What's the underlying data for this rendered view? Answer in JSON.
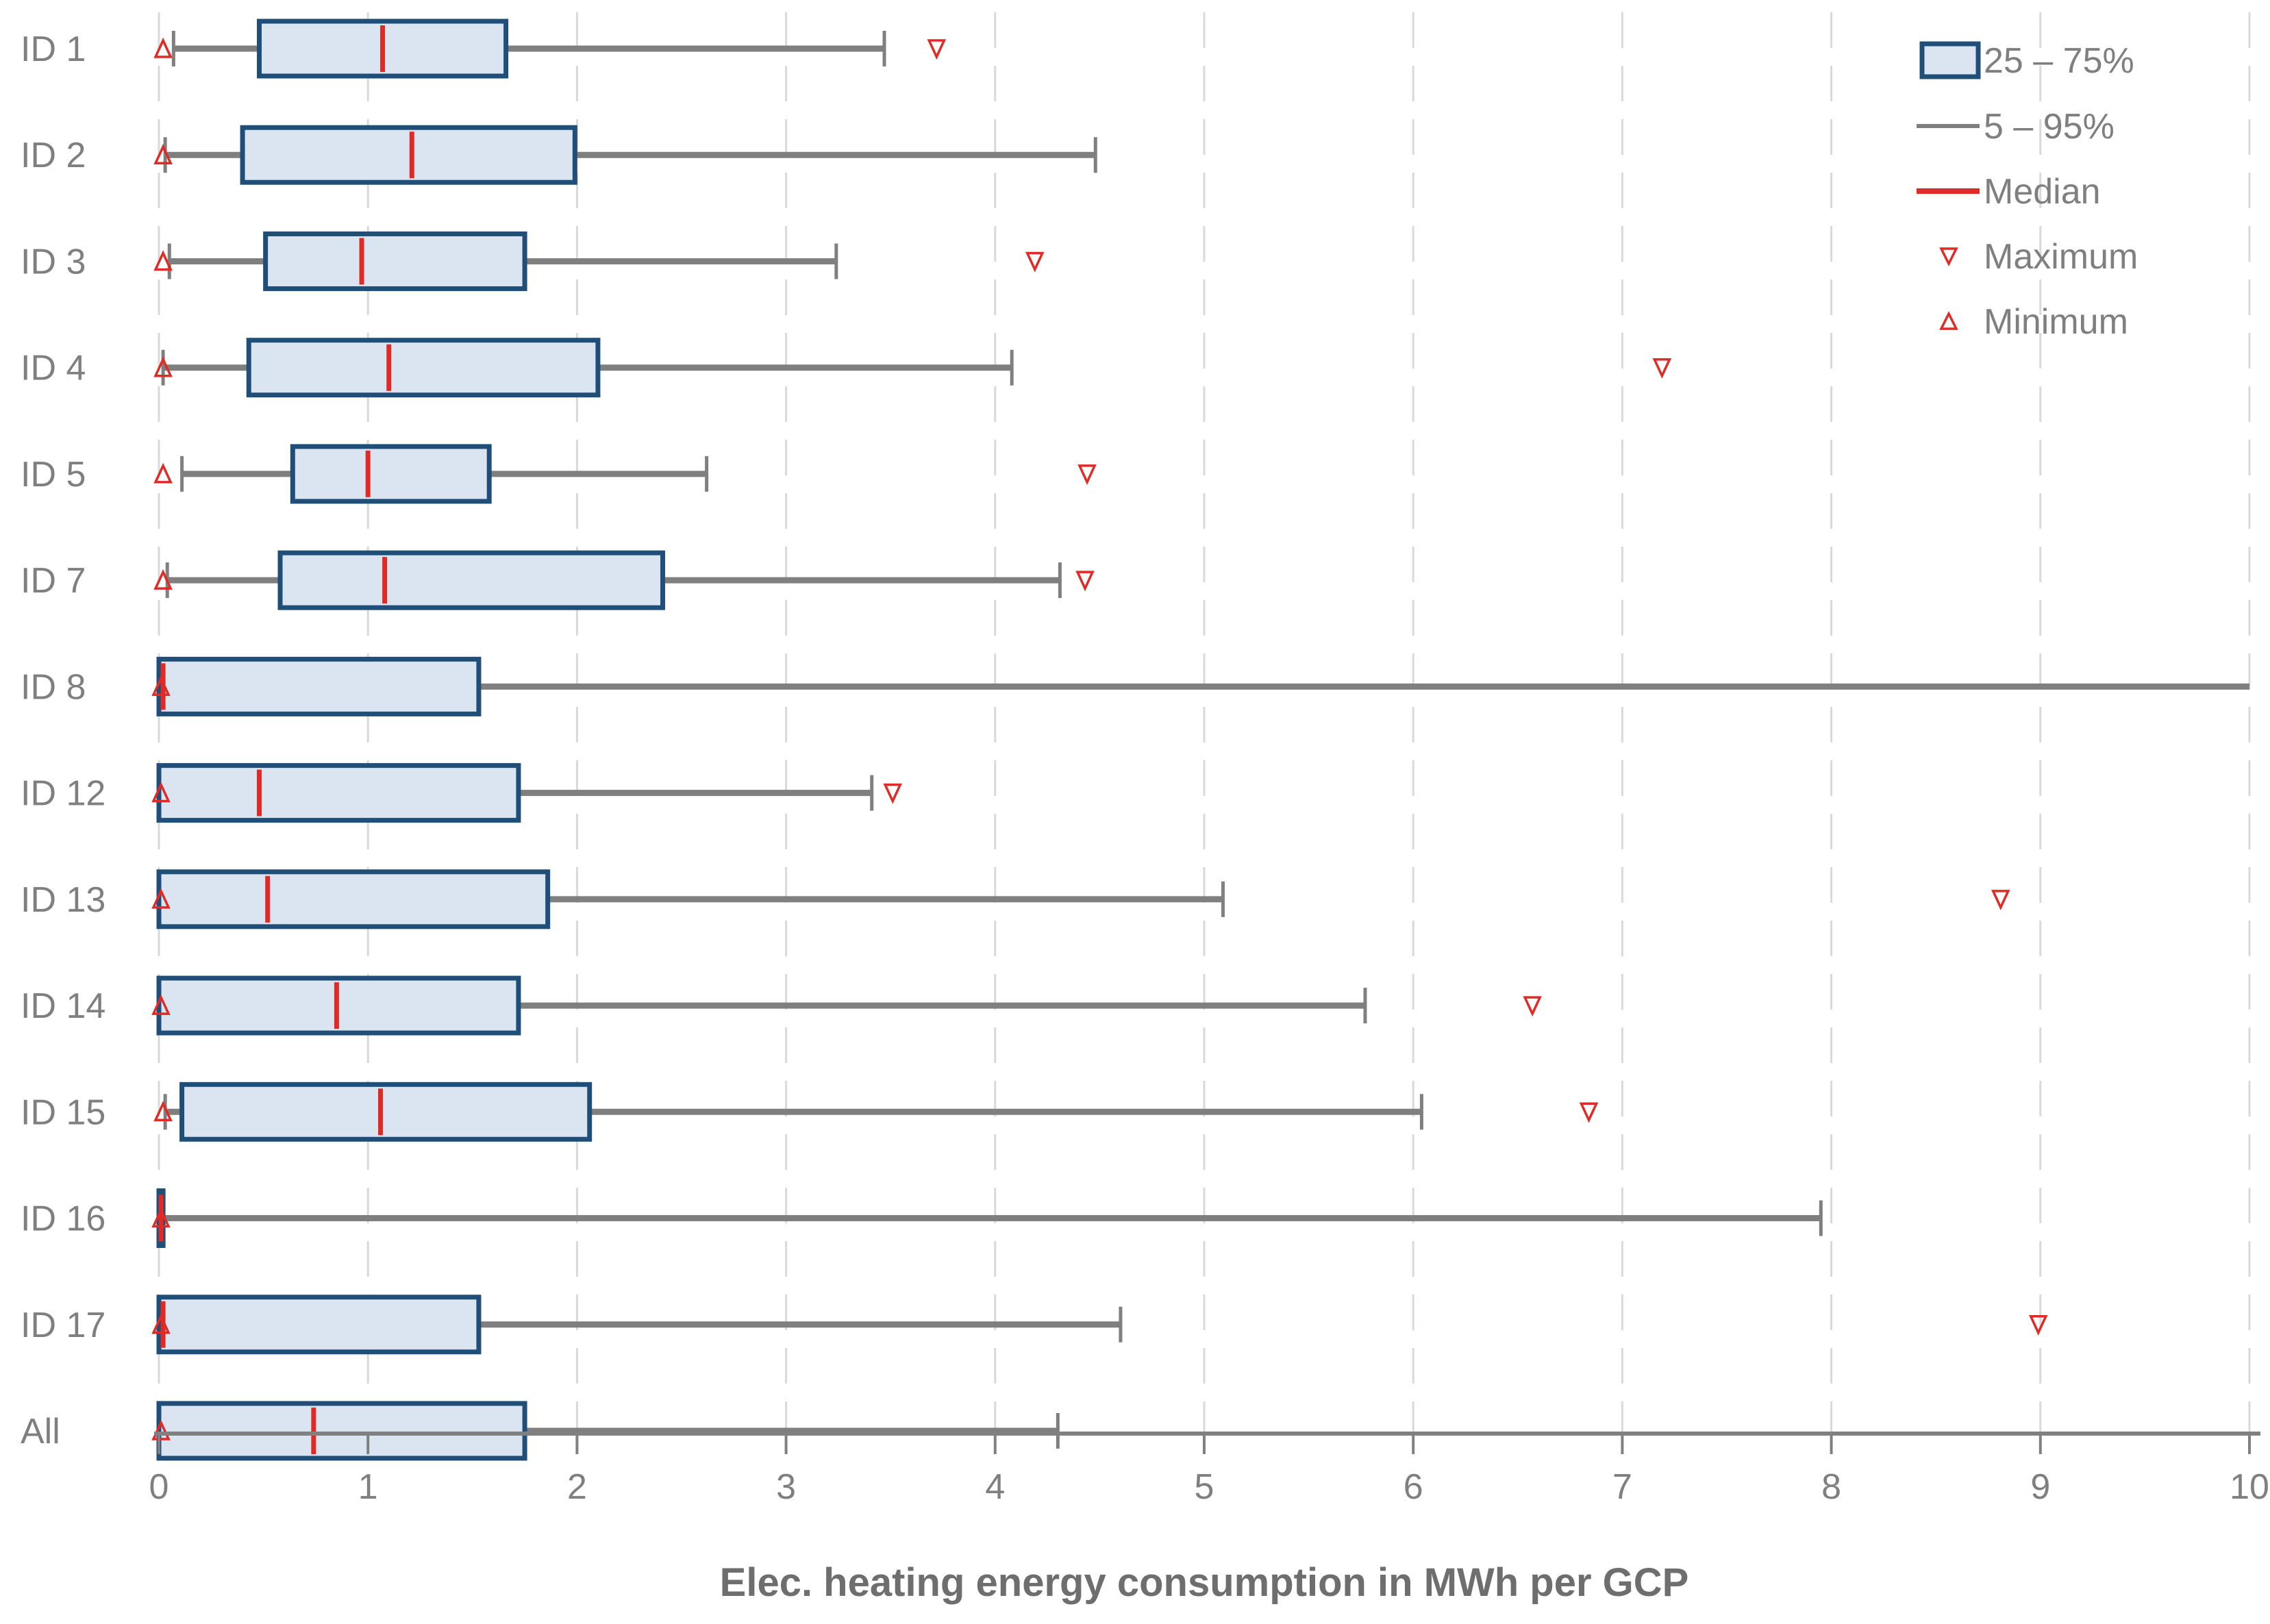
{
  "chart_data": {
    "type": "boxplot",
    "orientation": "horizontal",
    "xlabel": "Elec. heating energy consumption in MWh per GCP",
    "xlim": [
      0,
      10
    ],
    "xticks": [
      0,
      1,
      2,
      3,
      4,
      5,
      6,
      7,
      8,
      9,
      10
    ],
    "grid": "vertical-dashed-lines",
    "legend": {
      "position": "top-right",
      "entries": [
        {
          "label": "25 – 75%",
          "type": "box"
        },
        {
          "label": "5 – 95%",
          "type": "line"
        },
        {
          "label": "Median",
          "type": "median-line"
        },
        {
          "label": "Maximum",
          "type": "triangle-down"
        },
        {
          "label": "Minimum",
          "type": "triangle-up"
        }
      ]
    },
    "rows": [
      {
        "label": "ID 1",
        "min": 0.02,
        "p5": 0.07,
        "q1": 0.48,
        "median": 1.07,
        "q3": 1.66,
        "p95": 3.47,
        "max": 3.72,
        "cap_left": true,
        "p95_clipped": false
      },
      {
        "label": "ID 2",
        "min": 0.02,
        "p5": 0.03,
        "q1": 0.4,
        "median": 1.21,
        "q3": 1.99,
        "p95": 4.48,
        "max": null,
        "cap_left": true,
        "p95_clipped": false
      },
      {
        "label": "ID 3",
        "min": 0.02,
        "p5": 0.05,
        "q1": 0.51,
        "median": 0.97,
        "q3": 1.75,
        "p95": 3.24,
        "max": 4.19,
        "cap_left": true,
        "p95_clipped": false
      },
      {
        "label": "ID 4",
        "min": 0.02,
        "p5": 0.02,
        "q1": 0.43,
        "median": 1.1,
        "q3": 2.1,
        "p95": 4.08,
        "max": 7.19,
        "cap_left": true,
        "p95_clipped": false
      },
      {
        "label": "ID 5",
        "min": 0.02,
        "p5": 0.11,
        "q1": 0.64,
        "median": 1.0,
        "q3": 1.58,
        "p95": 2.62,
        "max": 4.44,
        "cap_left": true,
        "p95_clipped": false
      },
      {
        "label": "ID 7",
        "min": 0.02,
        "p5": 0.04,
        "q1": 0.58,
        "median": 1.08,
        "q3": 2.41,
        "p95": 4.31,
        "max": 4.43,
        "cap_left": true,
        "p95_clipped": false
      },
      {
        "label": "ID 8",
        "min": 0.01,
        "p5": 0.0,
        "q1": 0.0,
        "median": 0.02,
        "q3": 1.53,
        "p95": 10.0,
        "max": null,
        "cap_left": false,
        "p95_clipped": true
      },
      {
        "label": "ID 12",
        "min": 0.01,
        "p5": 0.0,
        "q1": 0.0,
        "median": 0.48,
        "q3": 1.72,
        "p95": 3.41,
        "max": 3.51,
        "cap_left": false,
        "p95_clipped": false
      },
      {
        "label": "ID 13",
        "min": 0.01,
        "p5": 0.0,
        "q1": 0.0,
        "median": 0.52,
        "q3": 1.86,
        "p95": 5.09,
        "max": 8.81,
        "cap_left": false,
        "p95_clipped": false
      },
      {
        "label": "ID 14",
        "min": 0.01,
        "p5": 0.0,
        "q1": 0.0,
        "median": 0.85,
        "q3": 1.72,
        "p95": 5.77,
        "max": 6.57,
        "cap_left": false,
        "p95_clipped": false
      },
      {
        "label": "ID 15",
        "min": 0.02,
        "p5": 0.03,
        "q1": 0.11,
        "median": 1.06,
        "q3": 2.06,
        "p95": 6.04,
        "max": 6.84,
        "cap_left": true,
        "p95_clipped": false
      },
      {
        "label": "ID 16",
        "min": 0.01,
        "p5": 0.0,
        "q1": 0.0,
        "median": 0.01,
        "q3": 0.02,
        "p95": 7.95,
        "max": null,
        "cap_left": false,
        "p95_clipped": false
      },
      {
        "label": "ID 17",
        "min": 0.01,
        "p5": 0.0,
        "q1": 0.0,
        "median": 0.02,
        "q3": 1.53,
        "p95": 4.6,
        "max": 8.99,
        "cap_left": false,
        "p95_clipped": false
      },
      {
        "label": "All",
        "min": 0.01,
        "p5": 0.0,
        "q1": 0.0,
        "median": 0.74,
        "q3": 1.75,
        "p95": 4.3,
        "max": null,
        "cap_left": false,
        "p95_clipped": false
      }
    ]
  },
  "colors": {
    "box_fill": "#dbe5f2",
    "box_border": "#1f4e79",
    "median": "#e02a25",
    "marker": "#e02a25",
    "whisker": "#7f7f7f",
    "gridline": "#d9d9d9",
    "axis": "#808080",
    "text": "#7f7f7f",
    "title": "#6e6e6e",
    "background": "#ffffff"
  }
}
